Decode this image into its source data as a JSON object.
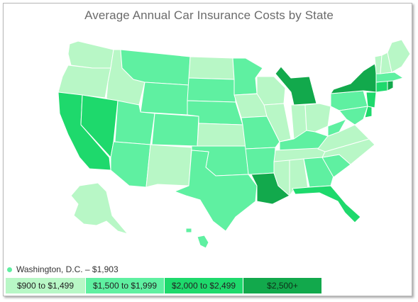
{
  "title": "Average Annual Car Insurance Costs by State",
  "colors": {
    "tier1": "#b8f7c6",
    "tier2": "#5ff0a1",
    "tier3": "#1ed96c",
    "tier4": "#12a94c"
  },
  "legend": {
    "items": [
      {
        "label": "$900 to $1,499",
        "tier": "tier1"
      },
      {
        "label": "$1,500 to $1,999",
        "tier": "tier2"
      },
      {
        "label": "$2,000 to $2,499",
        "tier": "tier3"
      },
      {
        "label": "$2,500+",
        "tier": "tier4"
      }
    ]
  },
  "dc_note": {
    "label": "Washington, D.C. – $1,903",
    "tier": "tier2"
  },
  "states": {
    "WA": "tier1",
    "OR": "tier1",
    "ID": "tier1",
    "MT": "tier2",
    "WY": "tier2",
    "CA": "tier3",
    "NV": "tier3",
    "UT": "tier2",
    "AZ": "tier2",
    "CO": "tier2",
    "NM": "tier1",
    "ND": "tier1",
    "SD": "tier2",
    "NE": "tier2",
    "KS": "tier1",
    "OK": "tier2",
    "TX": "tier2",
    "MN": "tier2",
    "IA": "tier1",
    "MO": "tier2",
    "AR": "tier2",
    "LA": "tier4",
    "WI": "tier1",
    "IL": "tier1",
    "MI": "tier4",
    "IN": "tier1",
    "OH": "tier1",
    "KY": "tier2",
    "TN": "tier1",
    "MS": "tier1",
    "AL": "tier1",
    "GA": "tier2",
    "FL": "tier3",
    "SC": "tier2",
    "NC": "tier1",
    "VA": "tier1",
    "WV": "tier2",
    "PA": "tier2",
    "NY": "tier4",
    "NJ": "tier3",
    "DE": "tier3",
    "MD": "tier2",
    "CT": "tier3",
    "RI": "tier4",
    "MA": "tier2",
    "VT": "tier1",
    "NH": "tier1",
    "ME": "tier1",
    "AK": "tier1",
    "HI": "tier2"
  }
}
